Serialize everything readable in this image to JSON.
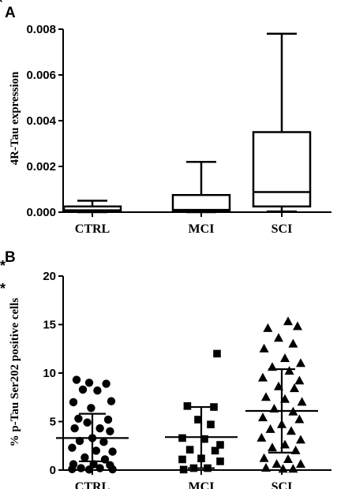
{
  "chart_data": [
    {
      "panel": "A",
      "type": "box",
      "ylabel": "4R-Tau expression",
      "ylim": [
        0,
        0.008
      ],
      "yticks": [
        "0.000",
        "0.002",
        "0.004",
        "0.006",
        "0.008"
      ],
      "ytick_values": [
        0,
        0.002,
        0.004,
        0.006,
        0.008
      ],
      "categories": [
        "CTRL",
        "MCI",
        "SCI"
      ],
      "boxes": [
        {
          "min": 0.0,
          "q1": 3e-05,
          "median": 8e-05,
          "q3": 0.00025,
          "max": 0.0005
        },
        {
          "min": 0.0,
          "q1": 4e-05,
          "median": 0.0001,
          "q3": 0.00075,
          "max": 0.0022
        },
        {
          "min": 3e-05,
          "q1": 0.00025,
          "median": 0.00088,
          "q3": 0.0035,
          "max": 0.0078
        }
      ],
      "significance": [
        {
          "from": "CTRL",
          "to": "SCI",
          "label": "*"
        }
      ]
    },
    {
      "panel": "B",
      "type": "scatter",
      "ylabel": "% p-Tau Ser202 positive cells",
      "ylim": [
        0,
        20
      ],
      "yticks": [
        "0",
        "5",
        "10",
        "15",
        "20"
      ],
      "ytick_values": [
        0,
        5,
        10,
        15,
        20
      ],
      "categories": [
        "CTRL",
        "MCI",
        "SCI"
      ],
      "series": [
        {
          "category": "CTRL",
          "marker": "circle",
          "mean": 3.3,
          "sd_low": 0.9,
          "sd_high": 5.8,
          "points": [
            [
              -0.25,
              9.3
            ],
            [
              -0.05,
              9.0
            ],
            [
              0.22,
              8.9
            ],
            [
              -0.15,
              8.3
            ],
            [
              0.08,
              8.2
            ],
            [
              -0.3,
              7.0
            ],
            [
              0.3,
              7.1
            ],
            [
              -0.02,
              6.4
            ],
            [
              -0.22,
              5.3
            ],
            [
              0.25,
              5.2
            ],
            [
              -0.08,
              4.9
            ],
            [
              -0.28,
              4.3
            ],
            [
              0.12,
              4.3
            ],
            [
              0.28,
              4.0
            ],
            [
              0.0,
              3.3
            ],
            [
              -0.2,
              3.0
            ],
            [
              0.18,
              2.9
            ],
            [
              -0.32,
              2.3
            ],
            [
              0.06,
              2.0
            ],
            [
              0.32,
              1.9
            ],
            [
              -0.12,
              1.3
            ],
            [
              0.2,
              1.1
            ],
            [
              -0.3,
              0.6
            ],
            [
              0.02,
              0.6
            ],
            [
              0.28,
              0.5
            ],
            [
              -0.18,
              0.2
            ],
            [
              0.12,
              0.2
            ],
            [
              -0.05,
              0.05
            ],
            [
              0.32,
              0.08
            ],
            [
              -0.32,
              0.1
            ]
          ]
        },
        {
          "category": "MCI",
          "marker": "square",
          "mean": 3.4,
          "sd_low": 0.2,
          "sd_high": 6.5,
          "points": [
            [
              0.25,
              12.0
            ],
            [
              -0.22,
              6.6
            ],
            [
              0.2,
              6.5
            ],
            [
              -0.05,
              5.2
            ],
            [
              0.15,
              4.7
            ],
            [
              -0.3,
              3.3
            ],
            [
              0.05,
              3.2
            ],
            [
              0.3,
              2.6
            ],
            [
              -0.18,
              2.1
            ],
            [
              0.22,
              2.0
            ],
            [
              0.0,
              1.2
            ],
            [
              -0.3,
              1.1
            ],
            [
              0.3,
              0.9
            ],
            [
              -0.12,
              0.2
            ],
            [
              0.1,
              0.2
            ],
            [
              -0.28,
              0.05
            ]
          ]
        },
        {
          "category": "SCI",
          "marker": "triangle",
          "mean": 6.1,
          "sd_low": 1.8,
          "sd_high": 10.4,
          "points": [
            [
              0.1,
              15.3
            ],
            [
              -0.22,
              14.6
            ],
            [
              0.25,
              14.8
            ],
            [
              -0.05,
              13.6
            ],
            [
              0.18,
              13.0
            ],
            [
              -0.28,
              12.5
            ],
            [
              0.05,
              11.5
            ],
            [
              0.3,
              11.0
            ],
            [
              -0.15,
              10.6
            ],
            [
              0.12,
              10.2
            ],
            [
              -0.3,
              9.5
            ],
            [
              0.28,
              9.2
            ],
            [
              -0.05,
              8.6
            ],
            [
              0.2,
              8.4
            ],
            [
              -0.25,
              7.5
            ],
            [
              0.05,
              7.3
            ],
            [
              0.32,
              7.0
            ],
            [
              -0.12,
              6.3
            ],
            [
              0.18,
              6.0
            ],
            [
              -0.3,
              5.4
            ],
            [
              0.28,
              5.2
            ],
            [
              0.0,
              4.7
            ],
            [
              -0.18,
              4.2
            ],
            [
              0.15,
              4.0
            ],
            [
              -0.32,
              3.3
            ],
            [
              0.3,
              3.1
            ],
            [
              0.05,
              2.6
            ],
            [
              -0.15,
              2.3
            ],
            [
              0.22,
              2.0
            ],
            [
              -0.28,
              1.2
            ],
            [
              0.1,
              1.1
            ],
            [
              0.3,
              0.6
            ],
            [
              -0.08,
              0.6
            ],
            [
              -0.25,
              0.2
            ],
            [
              0.18,
              0.1
            ],
            [
              0.02,
              0.1
            ]
          ]
        }
      ],
      "significance": [
        {
          "from": "CTRL",
          "to": "SCI",
          "label": "**"
        },
        {
          "from": "MCI",
          "to": "SCI",
          "label": "**"
        }
      ]
    }
  ]
}
